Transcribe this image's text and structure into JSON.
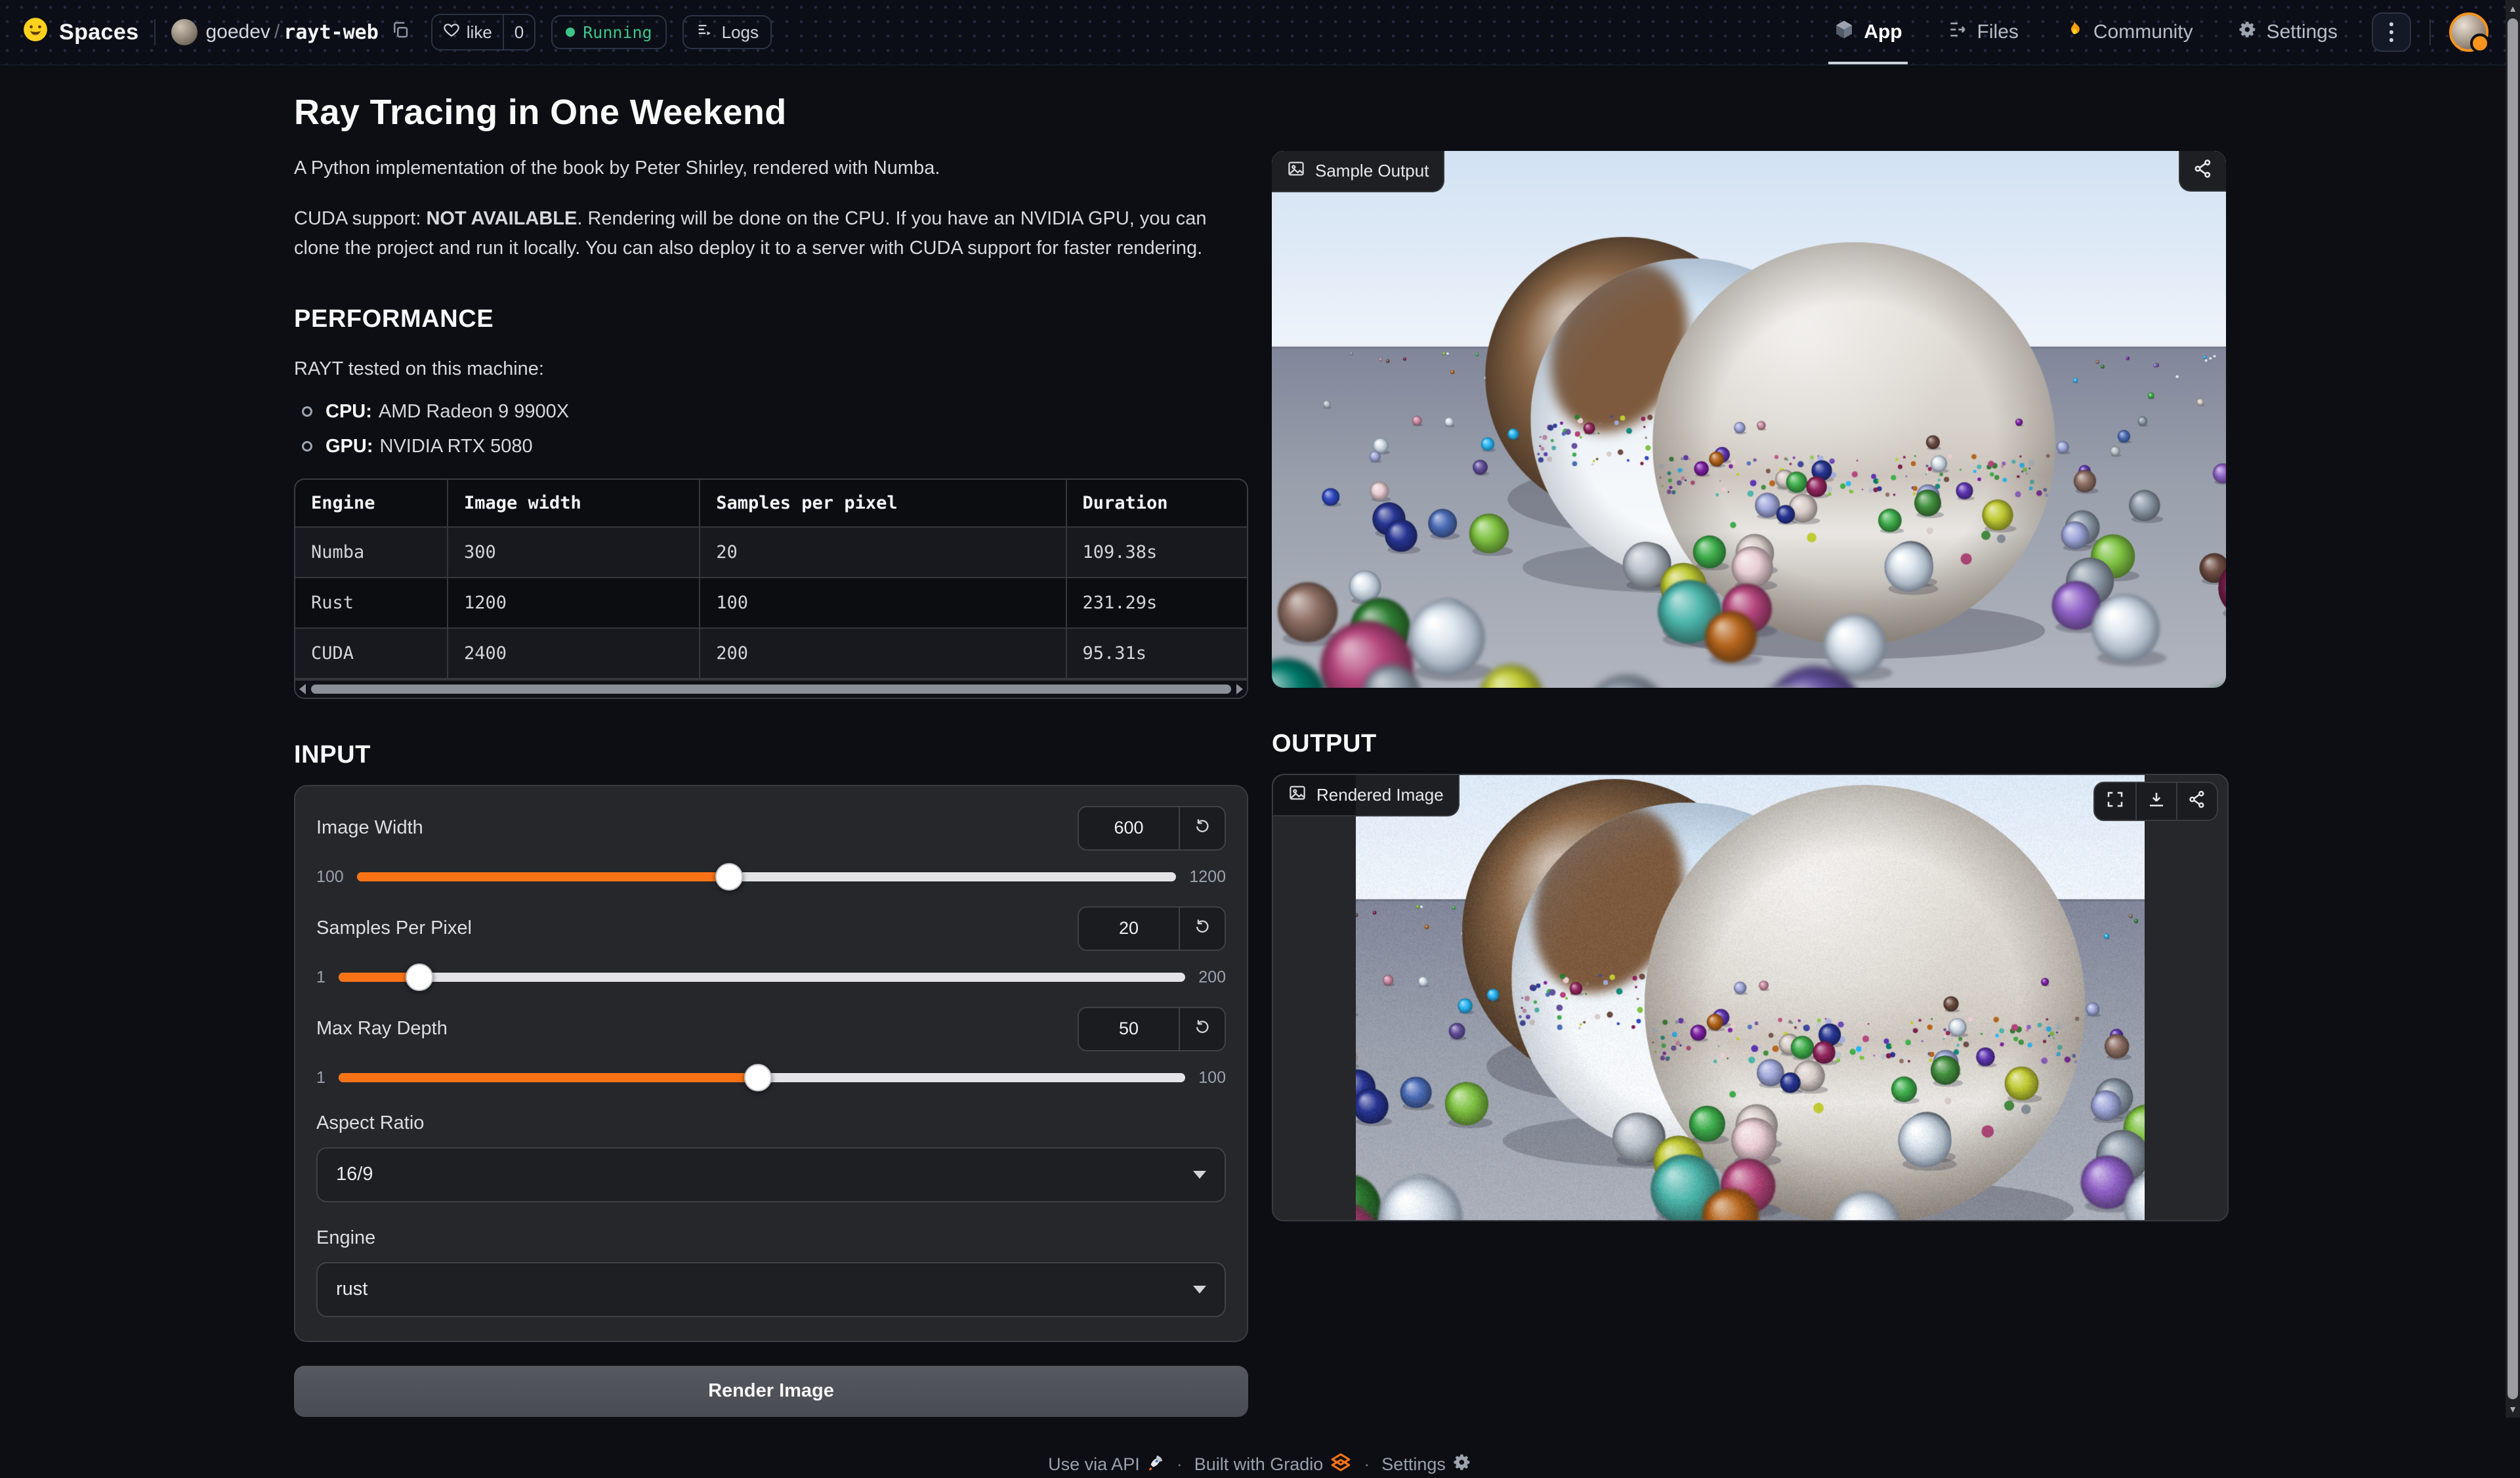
{
  "navbar": {
    "brand": "Spaces",
    "owner": "goedev",
    "path_sep": "/",
    "space": "rayt-web",
    "like_label": "like",
    "like_count": "0",
    "status": "Running",
    "logs_label": "Logs",
    "tabs": [
      {
        "label": "App",
        "active": true
      },
      {
        "label": "Files",
        "active": false
      },
      {
        "label": "Community",
        "active": false
      },
      {
        "label": "Settings",
        "active": false
      }
    ]
  },
  "content": {
    "title": "Ray Tracing in One Weekend",
    "intro": "A Python implementation of the book by Peter Shirley, rendered with Numba.",
    "cuda": {
      "prefix": "CUDA support: ",
      "bold": "NOT AVAILABLE",
      "suffix": ". Rendering will be done on the CPU. If you have an NVIDIA GPU, you can clone the project and run it locally. You can also deploy it to a server with CUDA support for faster rendering."
    },
    "performance": {
      "heading": "PERFORMANCE",
      "intro": "RAYT tested on this machine:",
      "bullets": [
        {
          "label": "CPU:",
          "value": "AMD Radeon 9 9900X"
        },
        {
          "label": "GPU:",
          "value": "NVIDIA RTX 5080"
        }
      ],
      "table": {
        "headers": [
          "Engine",
          "Image width",
          "Samples per pixel",
          "Duration"
        ],
        "rows": [
          [
            "Numba",
            "300",
            "20",
            "109.38s"
          ],
          [
            "Rust",
            "1200",
            "100",
            "231.29s"
          ],
          [
            "CUDA",
            "2400",
            "200",
            "95.31s"
          ]
        ]
      }
    },
    "input": {
      "heading": "INPUT",
      "sliders": [
        {
          "label": "Image Width",
          "value": "600",
          "min": "100",
          "max": "1200",
          "percent": 45.45
        },
        {
          "label": "Samples Per Pixel",
          "value": "20",
          "min": "1",
          "max": "200",
          "percent": 9.55
        },
        {
          "label": "Max Ray Depth",
          "value": "50",
          "min": "1",
          "max": "100",
          "percent": 49.49
        }
      ],
      "dropdowns": [
        {
          "label": "Aspect Ratio",
          "value": "16/9"
        },
        {
          "label": "Engine",
          "value": "rust"
        }
      ],
      "render_button": "Render Image"
    },
    "output": {
      "heading": "OUTPUT",
      "sample_badge": "Sample Output",
      "rendered_badge": "Rendered Image"
    }
  },
  "footer": {
    "api": "Use via API",
    "sep": "·",
    "gradio": "Built with Gradio",
    "settings": "Settings"
  },
  "colors": {
    "accent": "#f97316",
    "running_green": "#3ec487",
    "slider_track": "#e4e4e7",
    "panel_bg": "#26272b",
    "page_bg": "#0c0e13"
  }
}
